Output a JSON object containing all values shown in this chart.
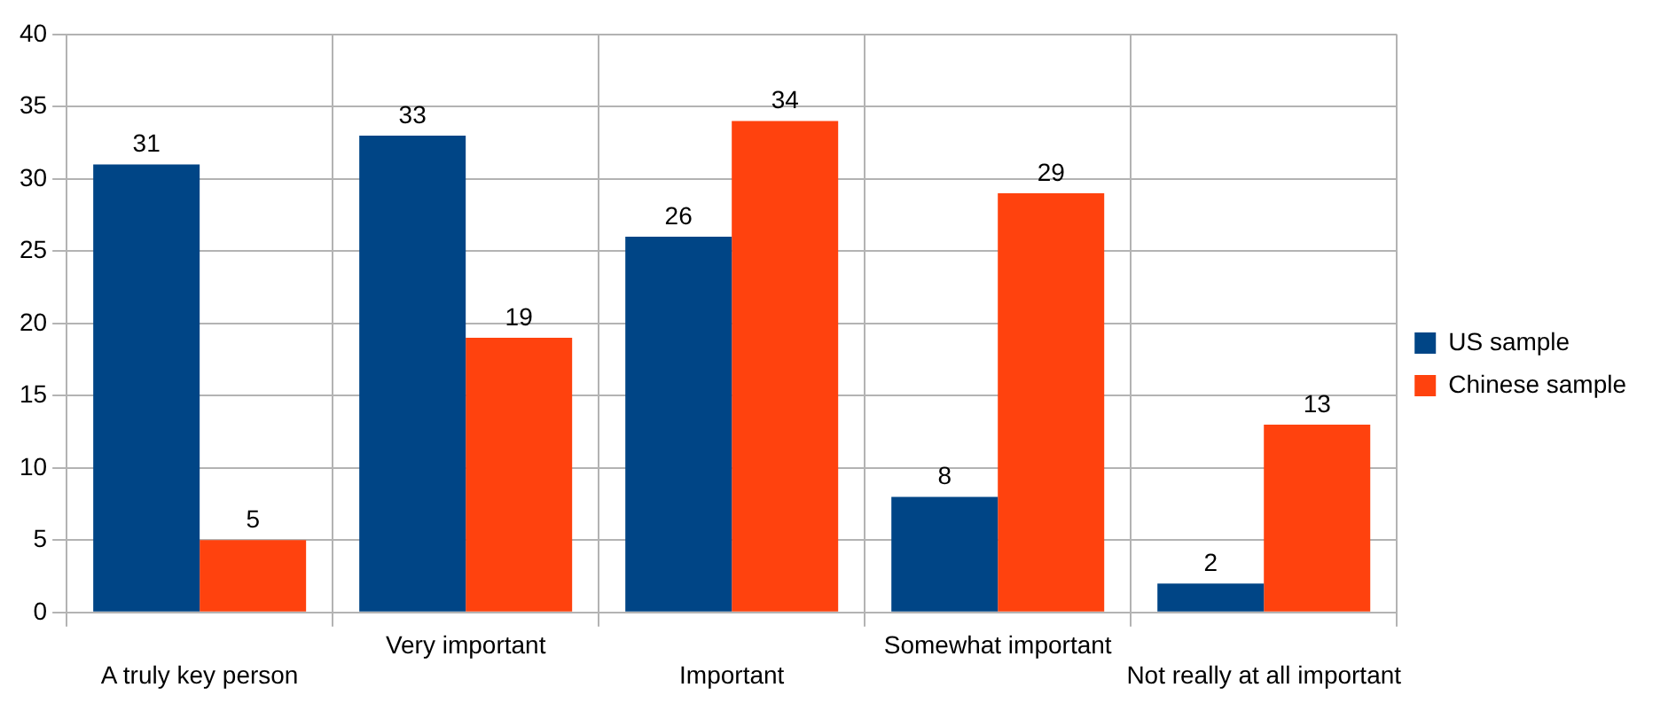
{
  "chart_data": {
    "type": "bar",
    "categories": [
      "A truly key person",
      "Very important",
      "Important",
      "Somewhat important",
      "Not really at all important"
    ],
    "series": [
      {
        "name": "US sample",
        "color": "#004586",
        "values": [
          31,
          33,
          26,
          8,
          2
        ]
      },
      {
        "name": "Chinese sample",
        "color": "#ff420e",
        "values": [
          5,
          19,
          34,
          29,
          13
        ]
      }
    ],
    "ylim": [
      0,
      40
    ],
    "yticks": [
      0,
      5,
      10,
      15,
      20,
      25,
      30,
      35,
      40
    ],
    "grid": true,
    "legend": "right",
    "data_labels": true
  }
}
